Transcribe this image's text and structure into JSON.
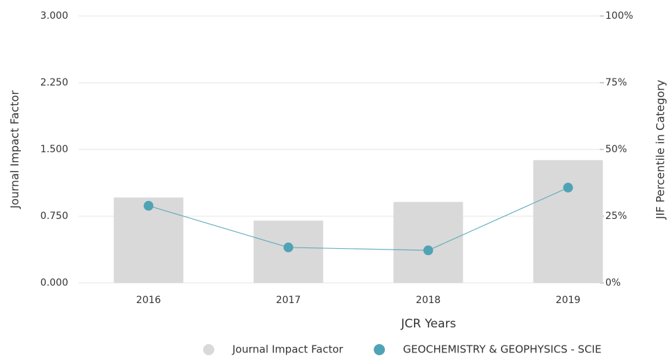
{
  "chart_data": {
    "type": "bar-line",
    "x_label": "JCR Years",
    "y_label": "Journal Impact Factor",
    "y2_label": "JIF Percentile in Category",
    "categories": [
      "2016",
      "2017",
      "2018",
      "2019"
    ],
    "series": [
      {
        "name": "Journal Impact Factor",
        "type": "bar",
        "color": "#d9d9d9",
        "values": [
          0.96,
          0.7,
          0.91,
          1.38
        ]
      },
      {
        "name": "GEOCHEMISTRY & GEOPHYSICS - SCIE",
        "type": "line",
        "axis": "y2",
        "color": "#4fa3b5",
        "values": [
          28.9,
          13.3,
          12.2,
          35.7
        ]
      }
    ],
    "ylim": [
      0,
      3
    ],
    "yticks": [
      {
        "value": 0,
        "label": "0.000"
      },
      {
        "value": 0.75,
        "label": "0.750"
      },
      {
        "value": 1.5,
        "label": "1.500"
      },
      {
        "value": 2.25,
        "label": "2.250"
      },
      {
        "value": 3,
        "label": "3.000"
      }
    ],
    "y2lim": [
      0,
      100
    ],
    "y2ticks": [
      {
        "value": 0,
        "label": "0%"
      },
      {
        "value": 25,
        "label": "25%"
      },
      {
        "value": 50,
        "label": "50%"
      },
      {
        "value": 75,
        "label": "75%"
      },
      {
        "value": 100,
        "label": "100%"
      }
    ],
    "grid": true
  }
}
